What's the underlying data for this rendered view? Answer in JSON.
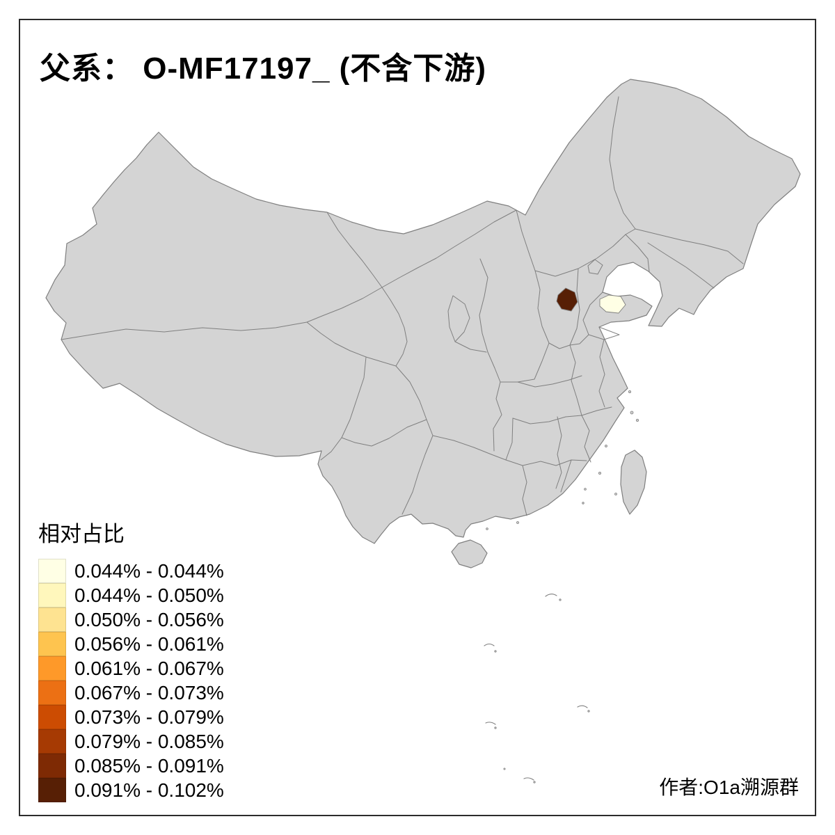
{
  "title": "父系： O-MF17197_ (不含下游)",
  "attribution": "作者:O1a溯源群",
  "legend": {
    "title": "相对占比",
    "entries": [
      {
        "label": "0.044% - 0.044%",
        "color": "#FFFFE5"
      },
      {
        "label": "0.044% - 0.050%",
        "color": "#FFF7BC"
      },
      {
        "label": "0.050% - 0.056%",
        "color": "#FEE391"
      },
      {
        "label": "0.056% - 0.061%",
        "color": "#FEC44F"
      },
      {
        "label": "0.061% - 0.067%",
        "color": "#FE9929"
      },
      {
        "label": "0.067% - 0.073%",
        "color": "#EC7014"
      },
      {
        "label": "0.073% - 0.079%",
        "color": "#CC4C02"
      },
      {
        "label": "0.079% - 0.085%",
        "color": "#A63A03"
      },
      {
        "label": "0.085% - 0.091%",
        "color": "#7E2A04"
      },
      {
        "label": "0.091% - 0.102%",
        "color": "#571F05"
      }
    ]
  },
  "map": {
    "base_fill": "#d4d4d4",
    "border_color": "#7f7f7f",
    "background": "#ffffff",
    "highlights": [
      {
        "id": "region-darkest",
        "class_label": "0.091% - 0.102%",
        "color": "#571F05"
      },
      {
        "id": "region-palest",
        "class_label": "0.044% - 0.044%",
        "color": "#FFFFE5"
      }
    ]
  },
  "chart_data": {
    "type": "choropleth",
    "title": "父系： O-MF17197_ (不含下游)",
    "legend_title": "相对占比",
    "classes": [
      "0.044% - 0.044%",
      "0.044% - 0.050%",
      "0.050% - 0.056%",
      "0.056% - 0.061%",
      "0.061% - 0.067%",
      "0.067% - 0.073%",
      "0.073% - 0.079%",
      "0.079% - 0.085%",
      "0.085% - 0.091%",
      "0.091% - 0.102%"
    ],
    "colors": [
      "#FFFFE5",
      "#FFF7BC",
      "#FEE391",
      "#FEC44F",
      "#FE9929",
      "#EC7014",
      "#CC4C02",
      "#A63A03",
      "#7E2A04",
      "#571F05"
    ],
    "highlighted_regions": [
      {
        "id": "region-darkest",
        "class": "0.091% - 0.102%",
        "color": "#571F05"
      },
      {
        "id": "region-palest",
        "class": "0.044% - 0.044%",
        "color": "#FFFFE5"
      }
    ],
    "base_regions_class": "no data (gray)"
  }
}
